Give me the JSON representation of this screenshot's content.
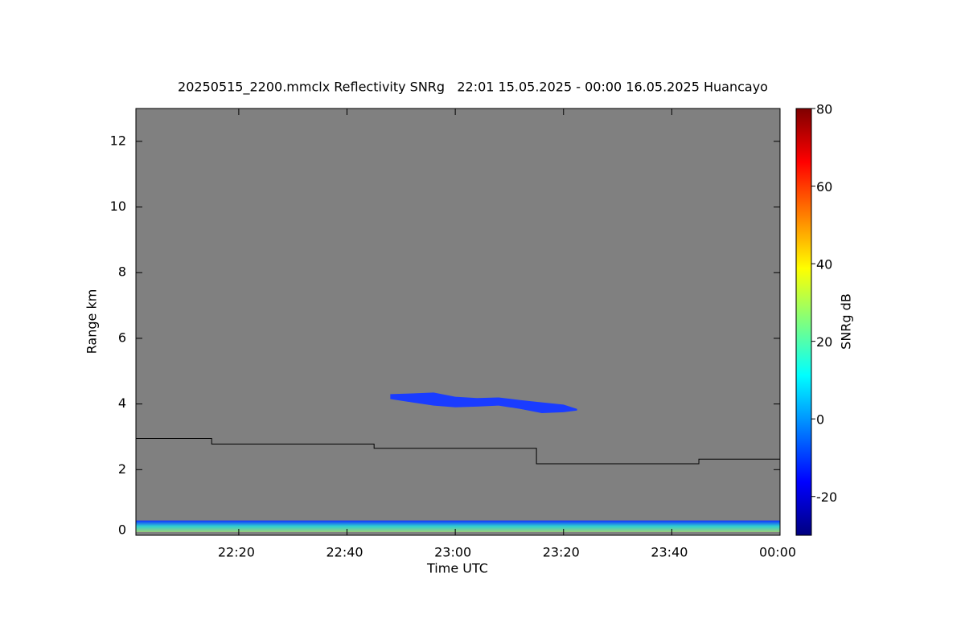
{
  "chart_data": {
    "type": "heatmap",
    "title": "20250515_2200.mmclx Reflectivity SNRg   22:01 15.05.2025 - 00:00 16.05.2025 Huancayo",
    "xlabel": "Time UTC",
    "ylabel": "Range km",
    "background": "#808080",
    "xlim": [
      1,
      120
    ],
    "xticks": [
      {
        "value": 20,
        "label": "22:20"
      },
      {
        "value": 40,
        "label": "22:40"
      },
      {
        "value": 60,
        "label": "23:00"
      },
      {
        "value": 80,
        "label": "23:20"
      },
      {
        "value": 100,
        "label": "23:40"
      },
      {
        "value": 120,
        "label": "00:00"
      }
    ],
    "ylim": [
      0,
      13
    ],
    "yticks": [
      0,
      2,
      4,
      6,
      8,
      10,
      12
    ],
    "line": {
      "color": "#000000",
      "x": [
        1,
        15,
        15,
        45,
        45,
        75,
        75,
        105,
        105,
        120
      ],
      "values": [
        2.95,
        2.95,
        2.78,
        2.78,
        2.65,
        2.65,
        2.18,
        2.18,
        2.32,
        2.32
      ]
    },
    "echo_layer": {
      "color": "#1a3cff",
      "x": [
        48,
        52,
        56,
        60,
        64,
        68,
        72,
        76,
        80,
        82.5
      ],
      "top": [
        4.3,
        4.32,
        4.35,
        4.22,
        4.18,
        4.2,
        4.12,
        4.05,
        3.98,
        3.85
      ],
      "bottom": [
        4.15,
        4.05,
        3.95,
        3.9,
        3.92,
        3.95,
        3.85,
        3.72,
        3.75,
        3.8
      ]
    },
    "surface_band": {
      "x": [
        1,
        120
      ],
      "bottom": 0.1,
      "top": 0.45,
      "colors": [
        "#9ad07a",
        "#2fd0d0",
        "#1030ff"
      ]
    },
    "colorbar": {
      "label": "SNRg dB",
      "lim": [
        -30,
        80
      ],
      "ticks": [
        -20,
        0,
        20,
        40,
        60,
        80
      ],
      "colors": [
        "#00007f",
        "#0000ff",
        "#007fff",
        "#00ffff",
        "#7fff7f",
        "#ffff00",
        "#ff7f00",
        "#ff0000",
        "#7f0000"
      ]
    }
  }
}
